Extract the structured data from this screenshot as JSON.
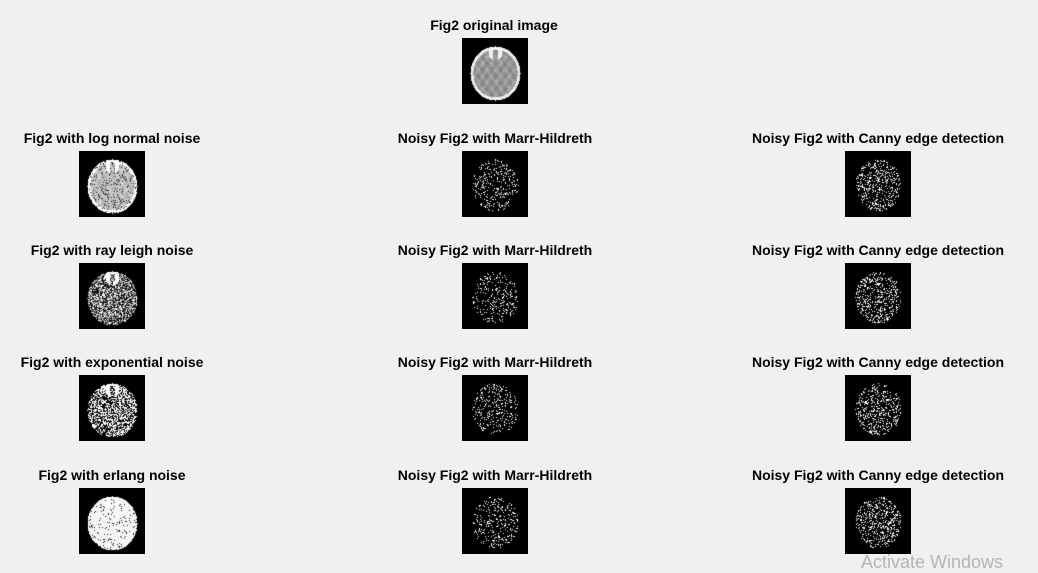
{
  "figure": {
    "panels": [
      {
        "id": "original",
        "title": "Fig2 original image",
        "kind": "original"
      },
      {
        "id": "r1c1",
        "title": "Fig2 with log normal noise",
        "kind": "lognormal"
      },
      {
        "id": "r1c2",
        "title": "Noisy Fig2 with Marr-Hildreth",
        "kind": "edges-sparse"
      },
      {
        "id": "r1c3",
        "title": "Noisy Fig2 with Canny edge detection",
        "kind": "edges-dense"
      },
      {
        "id": "r2c1",
        "title": "Fig2 with ray leigh noise",
        "kind": "rayleigh"
      },
      {
        "id": "r2c2",
        "title": "Noisy Fig2 with Marr-Hildreth",
        "kind": "edges-sparse"
      },
      {
        "id": "r2c3",
        "title": "Noisy Fig2 with Canny edge detection",
        "kind": "edges-dense"
      },
      {
        "id": "r3c1",
        "title": "Fig2 with exponential noise",
        "kind": "exponential"
      },
      {
        "id": "r3c2",
        "title": "Noisy Fig2 with Marr-Hildreth",
        "kind": "edges-sparse"
      },
      {
        "id": "r3c3",
        "title": "Noisy Fig2 with Canny edge detection",
        "kind": "edges-dense"
      },
      {
        "id": "r4c1",
        "title": "Fig2 with erlang noise",
        "kind": "erlang"
      },
      {
        "id": "r4c2",
        "title": "Noisy Fig2 with Marr-Hildreth",
        "kind": "edges-sparse"
      },
      {
        "id": "r4c3",
        "title": "Noisy Fig2 with Canny edge detection",
        "kind": "edges-dense"
      }
    ]
  },
  "watermark": "Activate Windows"
}
